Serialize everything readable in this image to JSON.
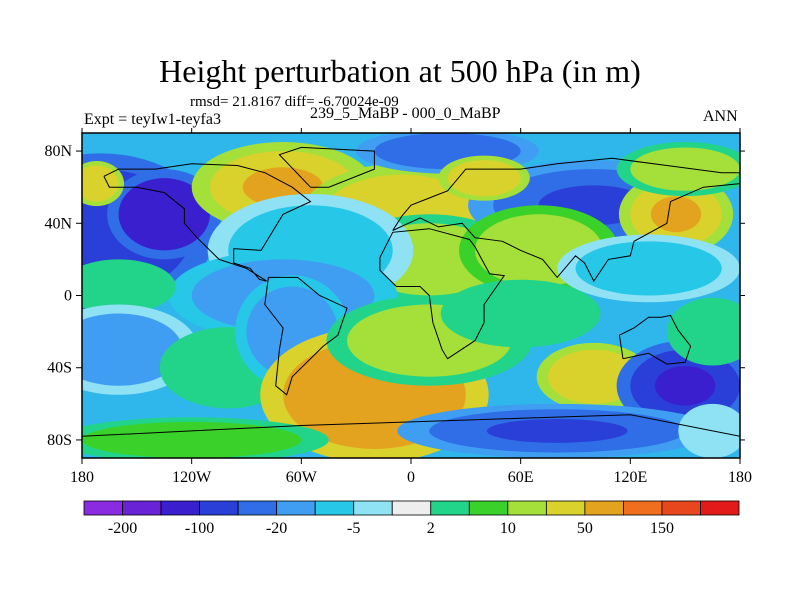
{
  "title": "Height perturbation at 500 hPa (in m)",
  "stats_line": "rmsd= 21.8167  diff= -6.70024e-09",
  "left_label": "Expt = teyIw1-teyfa3",
  "center_label": "239_5_MaBP - 000_0_MaBP",
  "right_label": "ANN",
  "chart_data": {
    "type": "heatmap",
    "xlim": [
      -180,
      180
    ],
    "ylim": [
      -90,
      90
    ],
    "x_ticks": [
      {
        "value": -180,
        "label": "180"
      },
      {
        "value": -120,
        "label": "120W"
      },
      {
        "value": -60,
        "label": "60W"
      },
      {
        "value": 0,
        "label": "0"
      },
      {
        "value": 60,
        "label": "60E"
      },
      {
        "value": 120,
        "label": "120E"
      },
      {
        "value": 180,
        "label": "180"
      }
    ],
    "y_ticks": [
      {
        "value": 80,
        "label": "80N"
      },
      {
        "value": 40,
        "label": "40N"
      },
      {
        "value": 0,
        "label": "0"
      },
      {
        "value": -40,
        "label": "40S"
      },
      {
        "value": -80,
        "label": "80S"
      }
    ],
    "colorbar": {
      "colors": [
        "#8a2be2",
        "#6a22d6",
        "#3a1fcf",
        "#2a3fd8",
        "#2f6ee6",
        "#3f9ef2",
        "#27c7e8",
        "#8fe2f4",
        "#eeeeee",
        "#22d48a",
        "#3ad22a",
        "#a5e03a",
        "#d9d12c",
        "#e3a31e",
        "#ef6f1f",
        "#e8461d",
        "#e31a1a"
      ],
      "labels": [
        "-200",
        "-100",
        "-20",
        "-5",
        "2",
        "10",
        "50",
        "150"
      ]
    },
    "field_blobs": [
      {
        "lon": -170,
        "lat": 35,
        "rx": 50,
        "ry": 35,
        "value": -60
      },
      {
        "lon": -135,
        "lat": 45,
        "rx": 25,
        "ry": 20,
        "value": -110
      },
      {
        "lon": -172,
        "lat": 62,
        "rx": 12,
        "ry": 10,
        "value": 40
      },
      {
        "lon": -70,
        "lat": 60,
        "rx": 40,
        "ry": 20,
        "value": 45
      },
      {
        "lon": -5,
        "lat": 42,
        "rx": 45,
        "ry": 25,
        "value": 35
      },
      {
        "lon": 10,
        "lat": 20,
        "rx": 40,
        "ry": 20,
        "value": 12
      },
      {
        "lon": -55,
        "lat": 25,
        "rx": 45,
        "ry": 25,
        "value": -8
      },
      {
        "lon": -70,
        "lat": 0,
        "rx": 50,
        "ry": 20,
        "value": -15
      },
      {
        "lon": 20,
        "lat": 80,
        "rx": 40,
        "ry": 10,
        "value": -30
      },
      {
        "lon": 100,
        "lat": 50,
        "rx": 55,
        "ry": 20,
        "value": -45
      },
      {
        "lon": 145,
        "lat": 45,
        "rx": 25,
        "ry": 18,
        "value": 45
      },
      {
        "lon": 150,
        "lat": 70,
        "rx": 30,
        "ry": 12,
        "value": 10
      },
      {
        "lon": 70,
        "lat": 25,
        "rx": 35,
        "ry": 20,
        "value": 15
      },
      {
        "lon": 130,
        "lat": 15,
        "rx": 40,
        "ry": 15,
        "value": -6
      },
      {
        "lon": -160,
        "lat": 5,
        "rx": 25,
        "ry": 12,
        "value": 3
      },
      {
        "lon": -160,
        "lat": -30,
        "rx": 35,
        "ry": 20,
        "value": -12
      },
      {
        "lon": -100,
        "lat": -40,
        "rx": 30,
        "ry": 18,
        "value": 3
      },
      {
        "lon": -65,
        "lat": -20,
        "rx": 25,
        "ry": 25,
        "value": -15
      },
      {
        "lon": -20,
        "lat": -55,
        "rx": 50,
        "ry": 30,
        "value": 50
      },
      {
        "lon": 10,
        "lat": -25,
        "rx": 45,
        "ry": 20,
        "value": 12
      },
      {
        "lon": 60,
        "lat": -10,
        "rx": 35,
        "ry": 15,
        "value": 2
      },
      {
        "lon": 100,
        "lat": -45,
        "rx": 25,
        "ry": 15,
        "value": 40
      },
      {
        "lon": 150,
        "lat": -50,
        "rx": 30,
        "ry": 20,
        "value": -90
      },
      {
        "lon": 80,
        "lat": -75,
        "rx": 70,
        "ry": 12,
        "value": -45
      },
      {
        "lon": -120,
        "lat": -80,
        "rx": 60,
        "ry": 10,
        "value": 5
      },
      {
        "lon": 165,
        "lat": -20,
        "rx": 20,
        "ry": 15,
        "value": 3
      },
      {
        "lon": 165,
        "lat": -75,
        "rx": 15,
        "ry": 12,
        "value": -5
      },
      {
        "lon": 40,
        "lat": 65,
        "rx": 20,
        "ry": 10,
        "value": 25
      }
    ]
  }
}
